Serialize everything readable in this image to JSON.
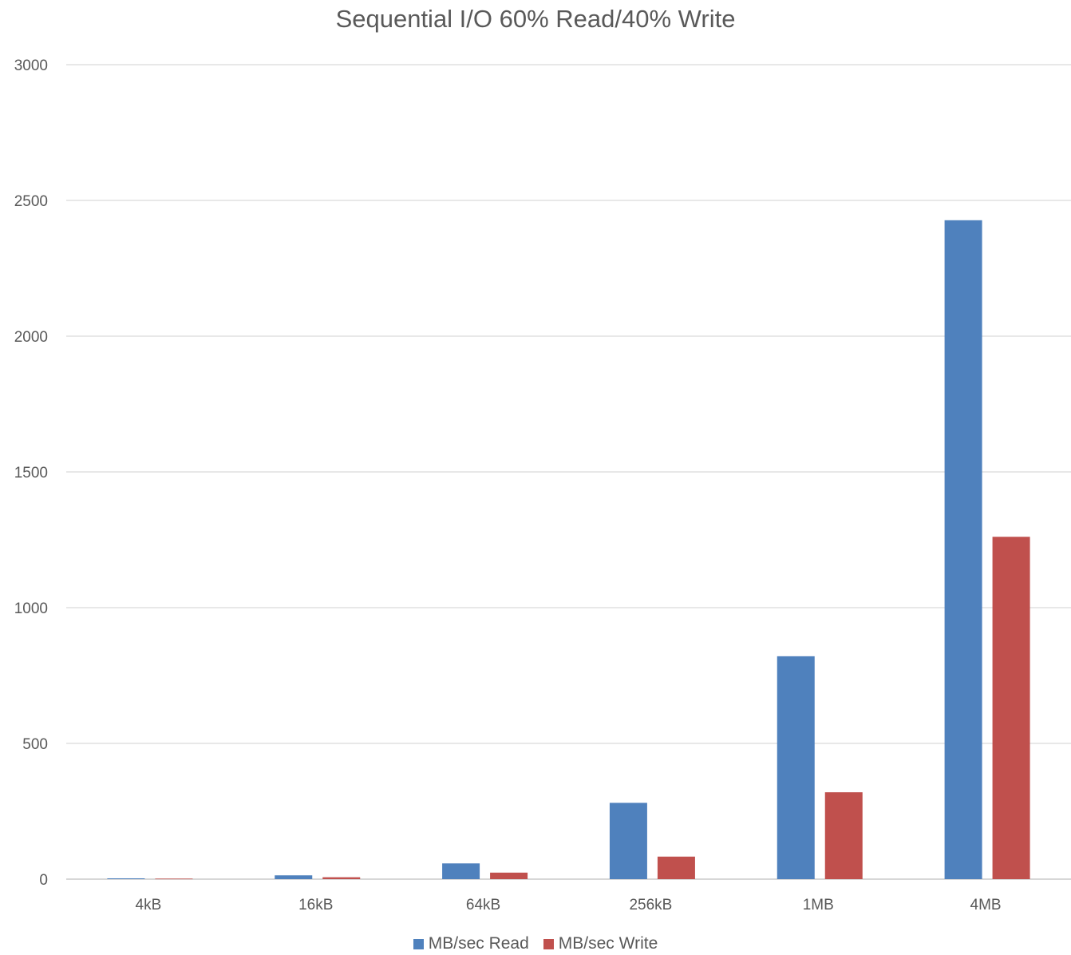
{
  "chart_data": {
    "type": "bar",
    "title": "Sequential I/O 60% Read/40% Write",
    "xlabel": "",
    "ylabel": "",
    "categories": [
      "4kB",
      "16kB",
      "64kB",
      "256kB",
      "1MB",
      "4MB"
    ],
    "series": [
      {
        "name": "MB/sec Read",
        "color": "#4F81BD",
        "values": [
          3,
          14,
          58,
          281,
          821,
          2427
        ]
      },
      {
        "name": "MB/sec Write",
        "color": "#C0504D",
        "values": [
          2,
          7,
          24,
          83,
          320,
          1261
        ]
      }
    ],
    "ylim": [
      0,
      3000
    ],
    "yticks": [
      0,
      500,
      1000,
      1500,
      2000,
      2500,
      3000
    ],
    "grid": true,
    "legend_position": "bottom"
  }
}
